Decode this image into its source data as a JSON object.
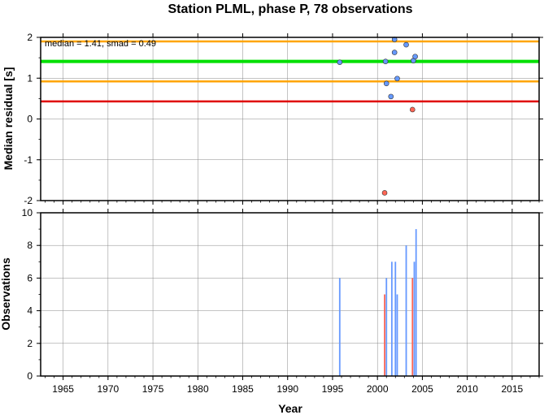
{
  "chart_data": [
    {
      "type": "scatter",
      "title": "Station PLML, phase P, 78 observations",
      "xlabel": "",
      "ylabel": "Median residual [s]",
      "xlim": [
        1962.5,
        2018.0
      ],
      "ylim": [
        -2,
        2
      ],
      "grid": true,
      "annotation": "median = 1.41, smad = 0.49",
      "yticks": [
        "2",
        "1",
        "0",
        "-1",
        "-2"
      ],
      "ytick_values": [
        2,
        1,
        0,
        -1,
        -2
      ],
      "colors": {
        "median": "#00e000",
        "smad": "#ffa500",
        "lower": "#e00000",
        "blue_point": "#6699ff",
        "red_point": "#ff6655"
      },
      "hlines": [
        {
          "role": "smad",
          "y": 1.9
        },
        {
          "role": "median",
          "y": 1.41
        },
        {
          "role": "smad",
          "y": 0.92
        },
        {
          "role": "lower",
          "y": 0.43
        }
      ],
      "series": [
        {
          "color": "blue_point",
          "points": [
            [
              1995.8,
              1.39
            ],
            [
              2000.9,
              1.41
            ],
            [
              2001.0,
              0.87
            ],
            [
              2001.5,
              0.55
            ],
            [
              2001.9,
              1.63
            ],
            [
              2001.9,
              1.95
            ],
            [
              2002.2,
              0.99
            ],
            [
              2003.2,
              1.82
            ],
            [
              2004.0,
              1.43
            ],
            [
              2004.2,
              1.53
            ]
          ]
        },
        {
          "color": "red_point",
          "points": [
            [
              2000.8,
              -1.81
            ],
            [
              2003.9,
              0.23
            ]
          ]
        }
      ]
    },
    {
      "type": "bar",
      "xlabel": "Year",
      "ylabel": "Observations",
      "xlim": [
        1962.5,
        2018.0
      ],
      "ylim": [
        0,
        10
      ],
      "grid": true,
      "xticks": [
        "1965",
        "1970",
        "1975",
        "1980",
        "1985",
        "1990",
        "1995",
        "2000",
        "2005",
        "2010",
        "2015"
      ],
      "xtick_values": [
        1965,
        1970,
        1975,
        1980,
        1985,
        1990,
        1995,
        2000,
        2005,
        2010,
        2015
      ],
      "yticks": [
        "10",
        "8",
        "6",
        "4",
        "2",
        "0"
      ],
      "ytick_values": [
        10,
        8,
        6,
        4,
        2,
        0
      ],
      "series": [
        {
          "color": "blue_point",
          "bars": [
            [
              1995.8,
              6
            ],
            [
              2001.0,
              6
            ],
            [
              2001.6,
              7
            ],
            [
              2002.0,
              7
            ],
            [
              2002.2,
              5
            ],
            [
              2003.2,
              8
            ],
            [
              2004.1,
              7
            ],
            [
              2004.3,
              9
            ]
          ]
        },
        {
          "color": "red_point",
          "bars": [
            [
              2000.8,
              5
            ],
            [
              2003.9,
              6
            ]
          ]
        }
      ]
    }
  ]
}
